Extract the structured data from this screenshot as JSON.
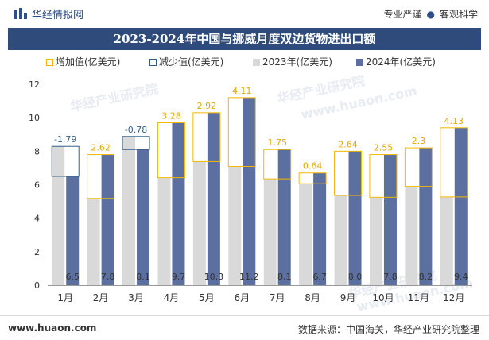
{
  "header": {
    "brand": "华经情报网",
    "slogan_left": "专业严谨",
    "slogan_right": "客观科学",
    "logo_icon": "chart-logo-icon",
    "brand_color": "#2f4e8c"
  },
  "footer": {
    "url": "www.huaon.com",
    "source": "数据来源：中国海关，华经产业研究院整理"
  },
  "watermark": {
    "cn": "华经产业研究院",
    "en": "www.huaon.com"
  },
  "legend": [
    {
      "label": "增加值(亿美元)",
      "color": "#f5b800",
      "style": "outline"
    },
    {
      "label": "减少值(亿美元)",
      "color": "#2f5f8a",
      "style": "outline"
    },
    {
      "label": "2023年(亿美元)",
      "color": "#d9d9d9",
      "style": "fill"
    },
    {
      "label": "2024年(亿美元)",
      "color": "#5b6fa0",
      "style": "fill"
    }
  ],
  "chart_data": {
    "type": "bar",
    "title": "2023-2024年中国与挪威月度双边货物进出口额",
    "xlabel": "",
    "ylabel": "",
    "ylim": [
      0,
      12
    ],
    "yticks": [
      0,
      2,
      4,
      6,
      8,
      10,
      12
    ],
    "categories": [
      "1月",
      "2月",
      "3月",
      "4月",
      "5月",
      "6月",
      "7月",
      "8月",
      "9月",
      "10月",
      "11月",
      "12月"
    ],
    "series": [
      {
        "name": "2023年(亿美元)",
        "values": [
          8.29,
          5.18,
          8.88,
          6.42,
          7.38,
          7.09,
          6.35,
          6.06,
          5.36,
          5.25,
          5.9,
          5.27
        ]
      },
      {
        "name": "2024年(亿美元)",
        "values": [
          6.5,
          7.8,
          8.1,
          9.7,
          10.3,
          11.2,
          8.1,
          6.7,
          8.0,
          7.8,
          8.2,
          9.4
        ]
      }
    ],
    "change_labels": [
      "-1.79",
      "2.62",
      "-0.78",
      "3.28",
      "2.92",
      "4.11",
      "1.75",
      "0.64",
      "2.64",
      "2.55",
      "2.3",
      "4.13"
    ],
    "value_labels_2024": [
      "6.5",
      "7.8",
      "8.1",
      "9.7",
      "10.3",
      "11.2",
      "8.1",
      "6.7",
      "8.0",
      "7.8",
      "8.2",
      "9.4"
    ],
    "colors": {
      "increase": "#f5b800",
      "decrease": "#2f5f8a",
      "y2023": "#d9d9d9",
      "y2024": "#5b6fa0",
      "increase_label": "#e6a800",
      "decrease_label": "#2f5f8a"
    }
  }
}
